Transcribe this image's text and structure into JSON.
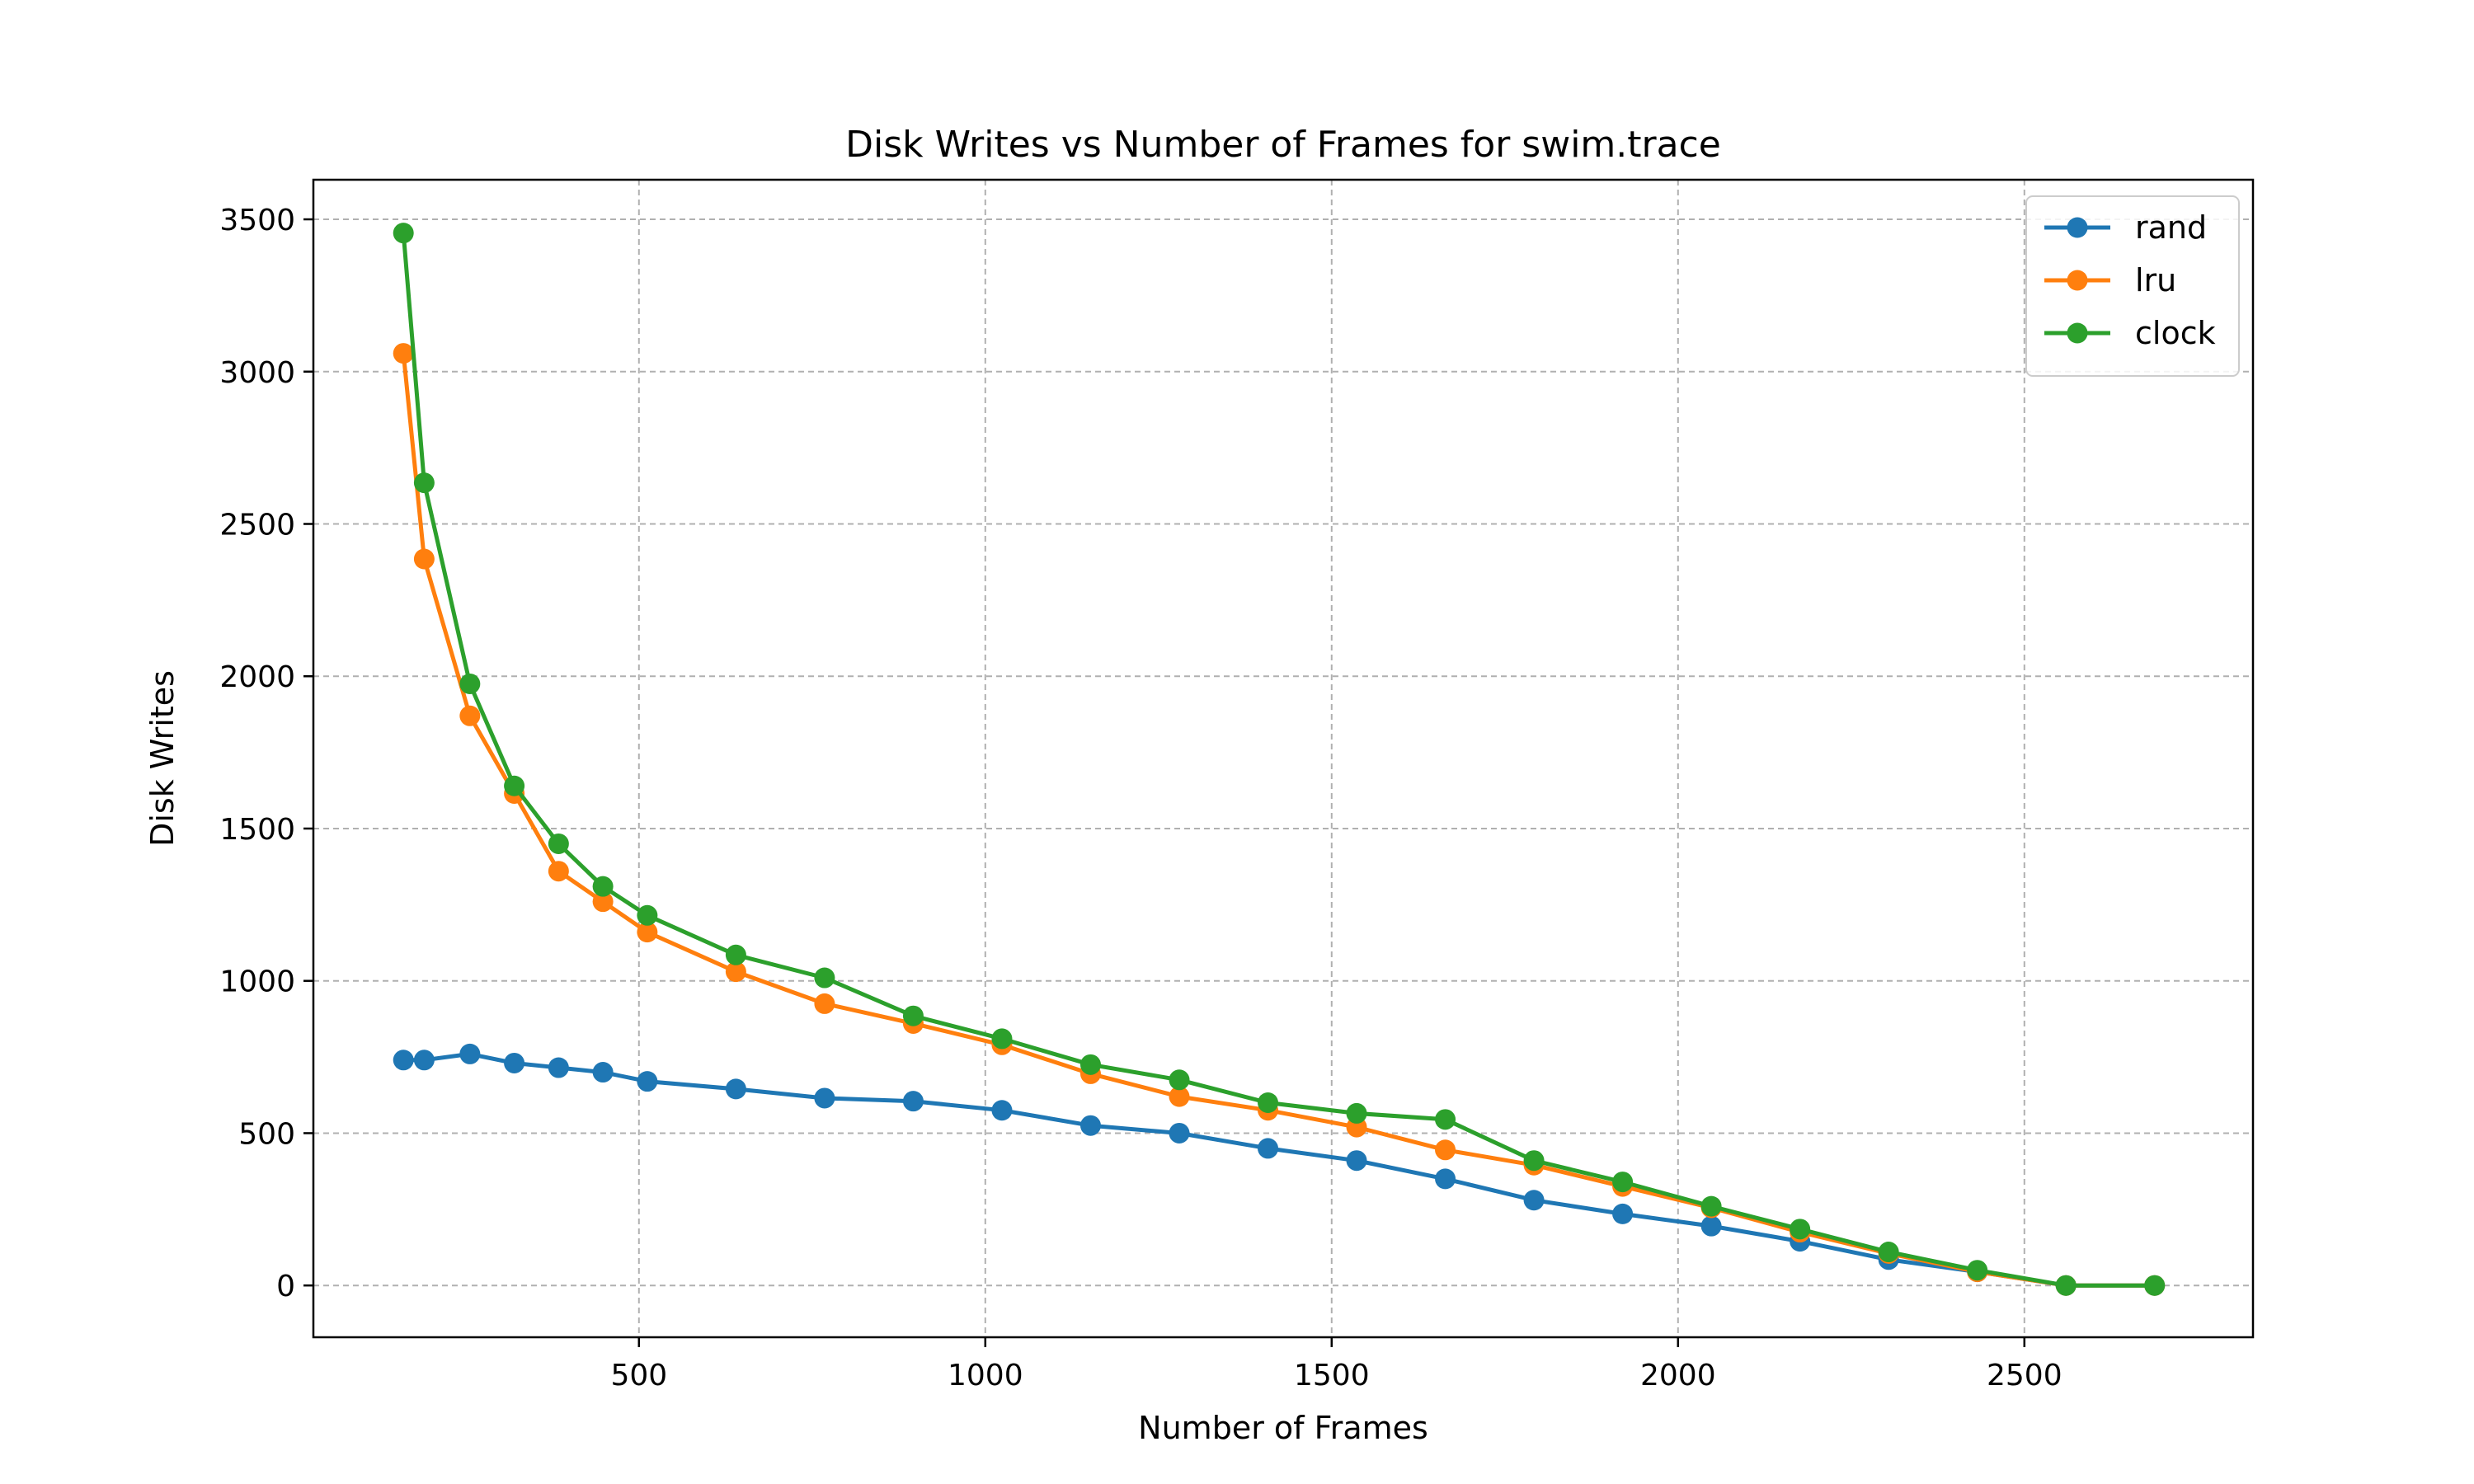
{
  "chart_data": {
    "type": "line",
    "title": "Disk Writes vs Number of Frames for swim.trace",
    "xlabel": "Number of Frames",
    "ylabel": "Disk Writes",
    "xlim": [
      30,
      2830
    ],
    "ylim": [
      -170,
      3630
    ],
    "xticks": [
      500,
      1000,
      1500,
      2000,
      2500
    ],
    "yticks": [
      0,
      500,
      1000,
      1500,
      2000,
      2500,
      3000,
      3500
    ],
    "grid": true,
    "legend_position": "top-right",
    "series": [
      {
        "name": "rand",
        "color": "#1f77b4",
        "x": [
          160,
          190,
          256,
          320,
          384,
          448,
          512,
          640,
          768,
          896,
          1024,
          1152,
          1280,
          1408,
          1536,
          1664,
          1792,
          1920,
          2048,
          2176,
          2304,
          2432,
          2560,
          2688
        ],
        "y": [
          740,
          740,
          760,
          730,
          715,
          700,
          670,
          645,
          615,
          605,
          575,
          525,
          500,
          450,
          410,
          350,
          280,
          235,
          195,
          145,
          85,
          45,
          0,
          0
        ]
      },
      {
        "name": "lru",
        "color": "#ff7f0e",
        "x": [
          160,
          190,
          256,
          320,
          384,
          448,
          512,
          640,
          768,
          896,
          1024,
          1152,
          1280,
          1408,
          1536,
          1664,
          1792,
          1920,
          2048,
          2176,
          2304,
          2432,
          2560,
          2688
        ],
        "y": [
          3060,
          2385,
          1870,
          1615,
          1360,
          1260,
          1160,
          1030,
          925,
          860,
          790,
          695,
          620,
          575,
          520,
          445,
          395,
          325,
          255,
          175,
          105,
          45,
          0,
          0
        ]
      },
      {
        "name": "clock",
        "color": "#2ca02c",
        "x": [
          160,
          190,
          256,
          320,
          384,
          448,
          512,
          640,
          768,
          896,
          1024,
          1152,
          1280,
          1408,
          1536,
          1664,
          1792,
          1920,
          2048,
          2176,
          2304,
          2432,
          2560,
          2688
        ],
        "y": [
          3455,
          2635,
          1975,
          1640,
          1450,
          1310,
          1215,
          1085,
          1010,
          885,
          810,
          725,
          675,
          600,
          565,
          545,
          410,
          340,
          260,
          185,
          110,
          50,
          0,
          0
        ]
      }
    ]
  }
}
